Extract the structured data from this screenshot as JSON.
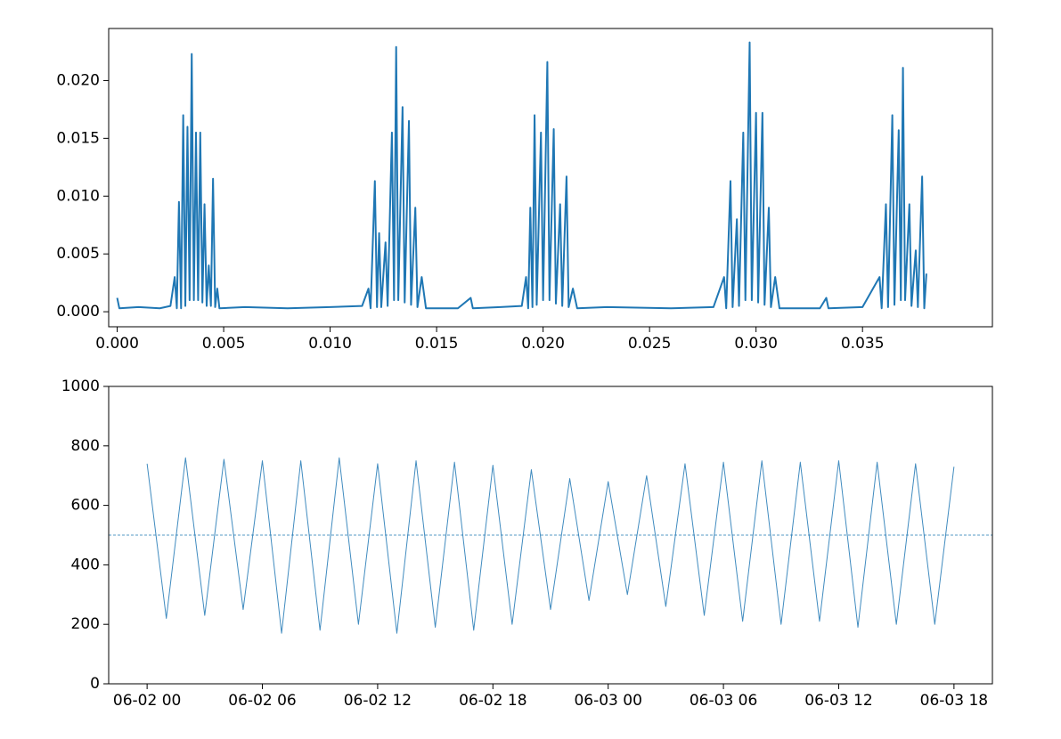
{
  "chart_data": [
    {
      "type": "line",
      "color": "#1f77b4",
      "x": [
        0,
        0.0001,
        0.001,
        0.002,
        0.0025,
        0.0027,
        0.0028,
        0.0029,
        0.003,
        0.0031,
        0.0032,
        0.0033,
        0.0034,
        0.0035,
        0.0036,
        0.0037,
        0.0038,
        0.0039,
        0.004,
        0.0041,
        0.0042,
        0.0043,
        0.0044,
        0.0045,
        0.0046,
        0.0047,
        0.0048,
        0.006,
        0.008,
        0.01,
        0.0115,
        0.0118,
        0.0119,
        0.0121,
        0.0122,
        0.0123,
        0.0124,
        0.0126,
        0.0127,
        0.0129,
        0.013,
        0.0131,
        0.0132,
        0.0134,
        0.0135,
        0.0137,
        0.0138,
        0.014,
        0.0141,
        0.0143,
        0.0145,
        0.016,
        0.0166,
        0.0167,
        0.018,
        0.019,
        0.0192,
        0.0193,
        0.0194,
        0.0195,
        0.0196,
        0.0197,
        0.0199,
        0.02,
        0.0202,
        0.0203,
        0.0205,
        0.0206,
        0.0208,
        0.0209,
        0.0211,
        0.0212,
        0.0214,
        0.0216,
        0.023,
        0.026,
        0.028,
        0.0285,
        0.0286,
        0.0288,
        0.0289,
        0.0291,
        0.0292,
        0.0294,
        0.0295,
        0.0297,
        0.0298,
        0.03,
        0.0301,
        0.0303,
        0.0304,
        0.0306,
        0.0307,
        0.0309,
        0.0311,
        0.033,
        0.0333,
        0.0334,
        0.035,
        0.0358,
        0.0359,
        0.0361,
        0.0362,
        0.0364,
        0.0365,
        0.0367,
        0.0368,
        0.0369,
        0.037,
        0.0372,
        0.0373,
        0.0375,
        0.0376,
        0.0378,
        0.0379,
        0.038
      ],
      "values": [
        0.0012,
        0.0003,
        0.0004,
        0.0003,
        0.0005,
        0.003,
        0.0003,
        0.0095,
        0.0003,
        0.017,
        0.0005,
        0.016,
        0.001,
        0.0223,
        0.001,
        0.0155,
        0.001,
        0.0155,
        0.0008,
        0.0093,
        0.0005,
        0.004,
        0.0005,
        0.0115,
        0.0004,
        0.002,
        0.0003,
        0.0004,
        0.0003,
        0.0004,
        0.0005,
        0.002,
        0.0003,
        0.0113,
        0.0004,
        0.0068,
        0.0004,
        0.006,
        0.0005,
        0.0155,
        0.001,
        0.0229,
        0.001,
        0.0177,
        0.0008,
        0.0165,
        0.0006,
        0.009,
        0.0004,
        0.003,
        0.0003,
        0.0003,
        0.0012,
        0.0003,
        0.0004,
        0.0005,
        0.003,
        0.0003,
        0.009,
        0.0004,
        0.017,
        0.0006,
        0.0155,
        0.001,
        0.0216,
        0.001,
        0.0158,
        0.0007,
        0.0093,
        0.0005,
        0.0117,
        0.0004,
        0.002,
        0.0003,
        0.0004,
        0.0003,
        0.0004,
        0.003,
        0.0003,
        0.0113,
        0.0004,
        0.008,
        0.0005,
        0.0155,
        0.001,
        0.0233,
        0.001,
        0.0172,
        0.0008,
        0.0172,
        0.0006,
        0.009,
        0.0004,
        0.003,
        0.0003,
        0.0003,
        0.0012,
        0.0003,
        0.0004,
        0.003,
        0.0003,
        0.0093,
        0.0004,
        0.017,
        0.0006,
        0.0157,
        0.001,
        0.0211,
        0.001,
        0.0093,
        0.0005,
        0.0053,
        0.0004,
        0.0117,
        0.0003,
        0.0033
      ],
      "xlim": [
        -0.0004,
        0.0411
      ],
      "xticks": [
        {
          "value": 0,
          "label": "0.000"
        },
        {
          "value": 0.005,
          "label": "0.005"
        },
        {
          "value": 0.01,
          "label": "0.010"
        },
        {
          "value": 0.015,
          "label": "0.015"
        },
        {
          "value": 0.02,
          "label": "0.020"
        },
        {
          "value": 0.025,
          "label": "0.025"
        },
        {
          "value": 0.03,
          "label": "0.030"
        },
        {
          "value": 0.035,
          "label": "0.035"
        }
      ],
      "ylim": [
        -0.0013,
        0.0245
      ],
      "yticks": [
        {
          "value": 0,
          "label": "0.000"
        },
        {
          "value": 0.005,
          "label": "0.005"
        },
        {
          "value": 0.01,
          "label": "0.010"
        },
        {
          "value": 0.015,
          "label": "0.015"
        },
        {
          "value": 0.02,
          "label": "0.020"
        }
      ]
    },
    {
      "type": "line",
      "color": "#1f77b4",
      "reference_line": 500,
      "x": [
        "06-02 00",
        "06-02 01",
        "06-02 02",
        "06-02 03",
        "06-02 04",
        "06-02 05",
        "06-02 06",
        "06-02 07",
        "06-02 08",
        "06-02 09",
        "06-02 10",
        "06-02 11",
        "06-02 12",
        "06-02 13",
        "06-02 14",
        "06-02 15",
        "06-02 16",
        "06-02 17",
        "06-02 18",
        "06-02 19",
        "06-02 20",
        "06-02 21",
        "06-02 22",
        "06-02 23",
        "06-03 00",
        "06-03 01",
        "06-03 02",
        "06-03 03",
        "06-03 04",
        "06-03 05",
        "06-03 06",
        "06-03 07",
        "06-03 08",
        "06-03 09",
        "06-03 10",
        "06-03 11",
        "06-03 12",
        "06-03 13",
        "06-03 14",
        "06-03 15",
        "06-03 16",
        "06-03 17",
        "06-03 18"
      ],
      "values": [
        740,
        220,
        760,
        230,
        755,
        250,
        750,
        170,
        750,
        180,
        760,
        200,
        740,
        170,
        750,
        190,
        745,
        180,
        735,
        200,
        720,
        250,
        690,
        280,
        680,
        300,
        700,
        260,
        740,
        230,
        745,
        210,
        750,
        200,
        745,
        210,
        750,
        190,
        745,
        200,
        740,
        200,
        730
      ],
      "xlim": [
        "06-01 22",
        "06-03 20"
      ],
      "xticks": [
        "06-02 00",
        "06-02 06",
        "06-02 12",
        "06-02 18",
        "06-03 00",
        "06-03 06",
        "06-03 12",
        "06-03 18"
      ],
      "ylim": [
        0,
        1000
      ],
      "yticks": [
        0,
        200,
        400,
        600,
        800,
        1000
      ]
    }
  ]
}
